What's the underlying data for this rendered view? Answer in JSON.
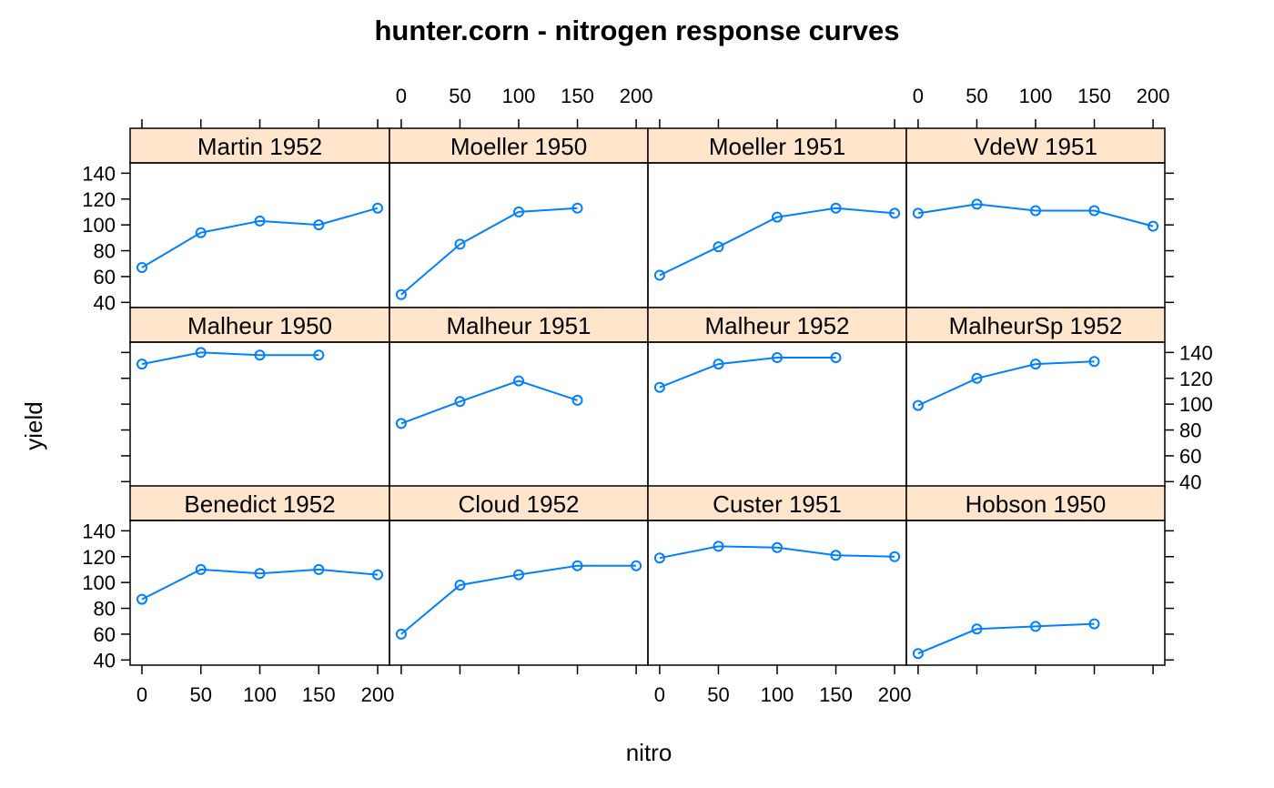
{
  "chart_data": {
    "type": "line",
    "title": "hunter.corn - nitrogen response curves",
    "xlabel": "nitro",
    "ylabel": "yield",
    "xlim": [
      -10,
      210
    ],
    "ylim": [
      36,
      148
    ],
    "x_ticks": [
      0,
      50,
      100,
      150,
      200
    ],
    "y_ticks": [
      40,
      60,
      80,
      100,
      120,
      140
    ],
    "layout": {
      "columns": 4,
      "rows": 3
    },
    "series_color": "#0080ff",
    "strip_color": "#ffe5cc",
    "panels": [
      {
        "name": "Martin 1952",
        "x": [
          0,
          50,
          100,
          150,
          200
        ],
        "y": [
          67,
          94,
          103,
          100,
          113
        ]
      },
      {
        "name": "Moeller 1950",
        "x": [
          0,
          50,
          100,
          150
        ],
        "y": [
          46,
          85,
          110,
          113
        ]
      },
      {
        "name": "Moeller 1951",
        "x": [
          0,
          50,
          100,
          150,
          200
        ],
        "y": [
          61,
          83,
          106,
          113,
          109
        ]
      },
      {
        "name": "VdeW 1951",
        "x": [
          0,
          50,
          100,
          150,
          200
        ],
        "y": [
          109,
          116,
          111,
          111,
          99
        ]
      },
      {
        "name": "Malheur 1950",
        "x": [
          0,
          50,
          100,
          150
        ],
        "y": [
          131,
          140,
          138,
          138
        ]
      },
      {
        "name": "Malheur 1951",
        "x": [
          0,
          50,
          100,
          150
        ],
        "y": [
          85,
          102,
          118,
          103
        ]
      },
      {
        "name": "Malheur 1952",
        "x": [
          0,
          50,
          100,
          150
        ],
        "y": [
          113,
          131,
          136,
          136
        ]
      },
      {
        "name": "MalheurSp 1952",
        "x": [
          0,
          50,
          100,
          150
        ],
        "y": [
          99,
          120,
          131,
          133
        ]
      },
      {
        "name": "Benedict 1952",
        "x": [
          0,
          50,
          100,
          150,
          200
        ],
        "y": [
          87,
          110,
          107,
          110,
          106
        ]
      },
      {
        "name": "Cloud 1952",
        "x": [
          0,
          50,
          100,
          150,
          200
        ],
        "y": [
          60,
          98,
          106,
          113,
          113
        ]
      },
      {
        "name": "Custer 1951",
        "x": [
          0,
          50,
          100,
          150,
          200
        ],
        "y": [
          119,
          128,
          127,
          121,
          120
        ]
      },
      {
        "name": "Hobson 1950",
        "x": [
          0,
          50,
          100,
          150
        ],
        "y": [
          45,
          64,
          66,
          68
        ]
      }
    ]
  }
}
